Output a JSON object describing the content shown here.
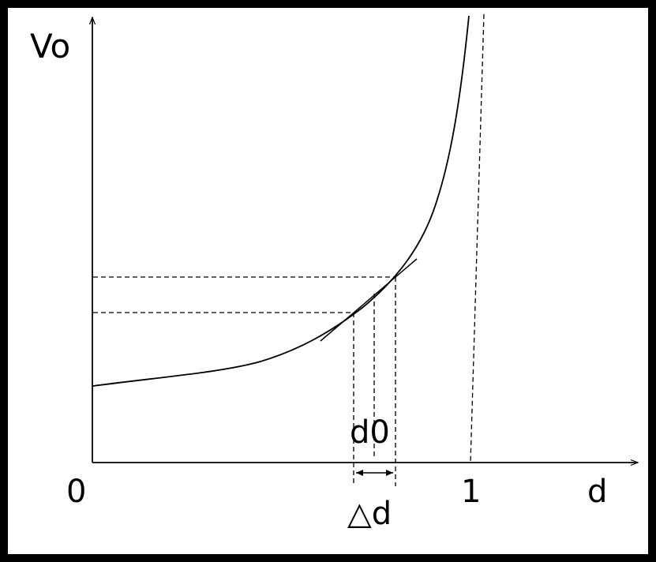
{
  "diagram": {
    "y_axis_label": "Vo",
    "x_axis_label": "d",
    "origin_label": "0",
    "one_label": "1",
    "d0_label": "d0",
    "delta_label": "△d"
  },
  "colors": {
    "background": "#ffffff",
    "border": "#000000",
    "ink": "#000000"
  }
}
